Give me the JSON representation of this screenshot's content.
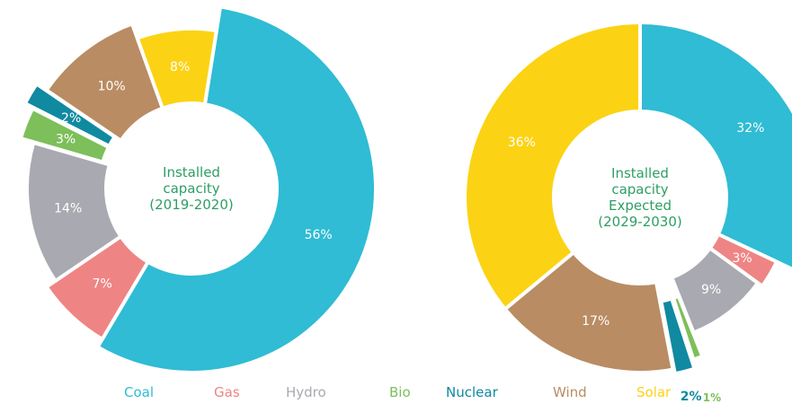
{
  "colors": {
    "Coal": "#2fbcd4",
    "Gas": "#ee8584",
    "Hydro": "#a9a9b1",
    "Bio": "#7dbf5a",
    "Nuclear": "#0f8aa1",
    "Wind": "#b98c63",
    "Solar": "#fbd314",
    "center_text": "#2e9e63",
    "label_text": "#ffffff"
  },
  "chart_data": [
    {
      "type": "pie",
      "variant": "exploded-donut",
      "center_label": [
        "Installed",
        "capacity",
        "(2019-2020)"
      ],
      "categories": [
        "Coal",
        "Gas",
        "Hydro",
        "Bio",
        "Nuclear",
        "Wind",
        "Solar"
      ],
      "values": [
        56,
        7,
        14,
        3,
        2,
        10,
        8
      ],
      "labels": [
        "56%",
        "7%",
        "14%",
        "3%",
        "2%",
        "10%",
        "8%"
      ],
      "exploded": [
        "Bio",
        "Nuclear"
      ]
    },
    {
      "type": "pie",
      "variant": "exploded-donut",
      "center_label": [
        "Installed",
        "capacity",
        "Expected",
        "(2029-2030)"
      ],
      "categories": [
        "Coal",
        "Gas",
        "Hydro",
        "Bio",
        "Nuclear",
        "Wind",
        "Solar"
      ],
      "values": [
        32,
        3,
        9,
        1,
        2,
        17,
        36
      ],
      "labels": [
        "32%",
        "3%",
        "9%",
        "1%",
        "2%",
        "17%",
        "36%"
      ],
      "exploded": [
        "Bio",
        "Nuclear"
      ]
    }
  ],
  "legend": {
    "items": [
      "Coal",
      "Gas",
      "Hydro",
      "Bio",
      "Nuclear",
      "Wind",
      "Solar"
    ]
  }
}
